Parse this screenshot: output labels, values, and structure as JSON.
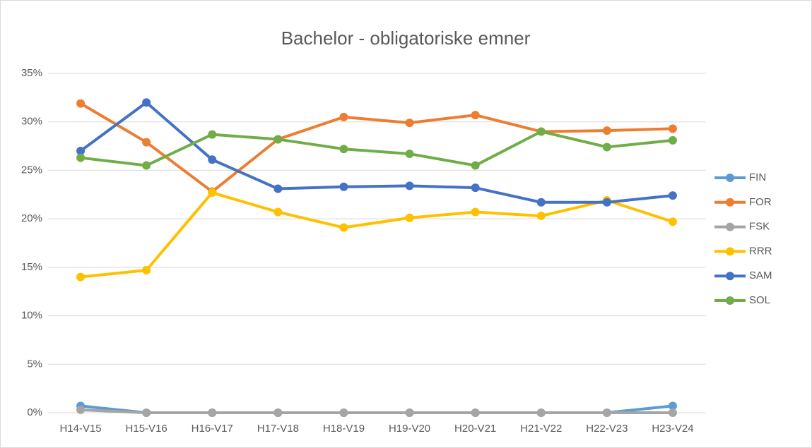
{
  "chart_data": {
    "type": "line",
    "title": "Bachelor - obligatoriske emner",
    "categories": [
      "H14-V15",
      "H15-V16",
      "H16-V17",
      "H17-V18",
      "H18-V19",
      "H19-V20",
      "H20-V21",
      "H21-V22",
      "H22-V23",
      "H23-V24"
    ],
    "series": [
      {
        "name": "FIN",
        "color": "#5b9bd5",
        "values": [
          0.7,
          0,
          0,
          0,
          0,
          0,
          0,
          0,
          0,
          0.7
        ]
      },
      {
        "name": "FOR",
        "color": "#ed7d31",
        "values": [
          31.9,
          27.9,
          22.8,
          28.2,
          30.5,
          29.9,
          30.7,
          29.0,
          29.1,
          29.3
        ]
      },
      {
        "name": "FSK",
        "color": "#a5a5a5",
        "values": [
          0.3,
          0,
          0,
          0,
          0,
          0,
          0,
          0,
          0,
          0
        ]
      },
      {
        "name": "RRR",
        "color": "#ffc000",
        "values": [
          14.0,
          14.7,
          22.7,
          20.7,
          19.1,
          20.1,
          20.7,
          20.3,
          21.9,
          19.7
        ]
      },
      {
        "name": "SAM",
        "color": "#4472c4",
        "values": [
          27.0,
          32.0,
          26.1,
          23.1,
          23.3,
          23.4,
          23.2,
          21.7,
          21.7,
          22.4
        ]
      },
      {
        "name": "SOL",
        "color": "#70ad47",
        "values": [
          26.3,
          25.5,
          28.7,
          28.2,
          27.2,
          26.7,
          25.5,
          29.0,
          27.4,
          28.1
        ]
      }
    ],
    "ylim": [
      0,
      35
    ],
    "yticks": [
      {
        "value": 0,
        "label": "0%"
      },
      {
        "value": 5,
        "label": "5%"
      },
      {
        "value": 10,
        "label": "10%"
      },
      {
        "value": 15,
        "label": "15%"
      },
      {
        "value": 20,
        "label": "20%"
      },
      {
        "value": 25,
        "label": "25%"
      },
      {
        "value": 30,
        "label": "30%"
      },
      {
        "value": 35,
        "label": "35%"
      }
    ],
    "grid": true,
    "legend": "right"
  }
}
